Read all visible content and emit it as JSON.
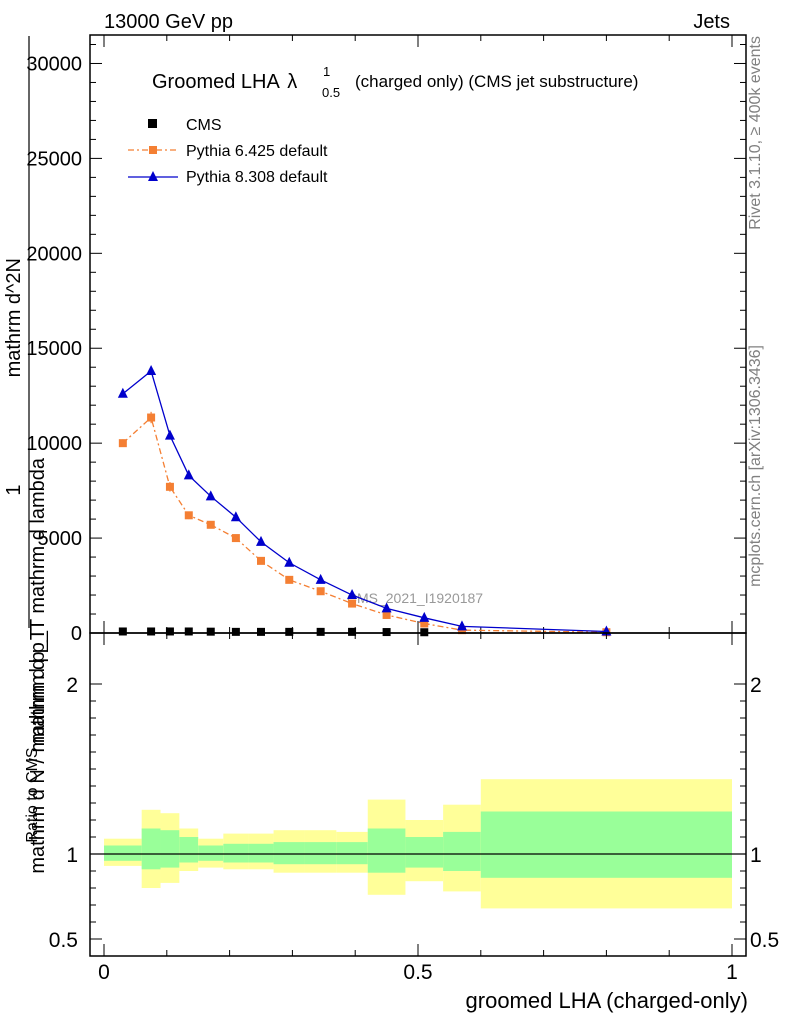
{
  "header": {
    "left": "13000 GeV pp",
    "right": "Jets"
  },
  "side_text": {
    "rivet": "Rivet 3.1.10, ≥ 400k events",
    "mcplots": "mcplots.cern.ch [arXiv:1306.3436]"
  },
  "chart_data": [
    {
      "type": "line",
      "title": "Groomed LHA",
      "title_lambda": "λ",
      "title_sup": "1",
      "title_sub": "0.5",
      "title_suffix": "(charged only) (CMS jet substructure)",
      "ylabel_parts": [
        "1",
        "mathrm d N / mathrm d p_T",
        "mathrm d^2N",
        "mathrm d p_T mathrm d lambda"
      ],
      "watermark": "CMS_2021_I1920187",
      "xlim": [
        0,
        1
      ],
      "ylim": [
        0,
        31500
      ],
      "yticks": [
        0,
        5000,
        10000,
        15000,
        20000,
        25000,
        30000
      ],
      "ytick_labels": [
        "0",
        "5000",
        "10000",
        "15000",
        "20000",
        "25000",
        "30000"
      ],
      "colors": {
        "cms": "#000000",
        "p6": "#f47f33",
        "p8": "#0000cc"
      },
      "series": [
        {
          "name": "CMS",
          "x": [
            0.03,
            0.075,
            0.105,
            0.135,
            0.17,
            0.21,
            0.25,
            0.295,
            0.345,
            0.395,
            0.45,
            0.51
          ],
          "values": [
            80,
            80,
            80,
            80,
            70,
            60,
            60,
            60,
            60,
            60,
            50,
            40
          ]
        },
        {
          "name": "Pythia 6.425 default",
          "x": [
            0.03,
            0.075,
            0.105,
            0.135,
            0.17,
            0.21,
            0.25,
            0.295,
            0.345,
            0.395,
            0.45,
            0.51,
            0.57,
            0.8
          ],
          "values": [
            10000,
            11350,
            7700,
            6200,
            5700,
            5000,
            3800,
            2800,
            2200,
            1550,
            950,
            500,
            150,
            40
          ],
          "errors": [
            200,
            300,
            250,
            200,
            150,
            150,
            120,
            100,
            100,
            80,
            60,
            50,
            30,
            20
          ]
        },
        {
          "name": "Pythia 8.308 default",
          "x": [
            0.03,
            0.075,
            0.105,
            0.135,
            0.17,
            0.21,
            0.25,
            0.295,
            0.345,
            0.395,
            0.45,
            0.51,
            0.57,
            0.8
          ],
          "values": [
            12600,
            13800,
            10400,
            8300,
            7200,
            6100,
            4800,
            3700,
            2800,
            2000,
            1300,
            800,
            350,
            80
          ]
        }
      ]
    },
    {
      "type": "area",
      "ylabel": "Ratio to CMS",
      "xlabel": "groomed LHA (charged-only)",
      "xlim": [
        0,
        1
      ],
      "ylim": [
        0.4,
        2.3
      ],
      "ytick_labels": [
        "0.5",
        "1",
        "2"
      ],
      "yticks": [
        0.5,
        1,
        2
      ],
      "xticks": [
        0,
        0.5,
        1
      ],
      "xtick_labels": [
        "0",
        "0.5",
        "1"
      ],
      "band_colors": {
        "outer": "#ffff99",
        "inner": "#99ff99"
      },
      "bins": [
        {
          "x0": 0.0,
          "x1": 0.06,
          "outer": [
            0.93,
            1.09
          ],
          "inner": [
            0.96,
            1.05
          ]
        },
        {
          "x0": 0.06,
          "x1": 0.09,
          "outer": [
            0.8,
            1.26
          ],
          "inner": [
            0.91,
            1.15
          ]
        },
        {
          "x0": 0.09,
          "x1": 0.12,
          "outer": [
            0.83,
            1.24
          ],
          "inner": [
            0.92,
            1.14
          ]
        },
        {
          "x0": 0.12,
          "x1": 0.15,
          "outer": [
            0.9,
            1.15
          ],
          "inner": [
            0.95,
            1.1
          ]
        },
        {
          "x0": 0.15,
          "x1": 0.19,
          "outer": [
            0.92,
            1.09
          ],
          "inner": [
            0.96,
            1.05
          ]
        },
        {
          "x0": 0.19,
          "x1": 0.23,
          "outer": [
            0.91,
            1.12
          ],
          "inner": [
            0.95,
            1.06
          ]
        },
        {
          "x0": 0.23,
          "x1": 0.27,
          "outer": [
            0.91,
            1.12
          ],
          "inner": [
            0.95,
            1.06
          ]
        },
        {
          "x0": 0.27,
          "x1": 0.32,
          "outer": [
            0.89,
            1.14
          ],
          "inner": [
            0.94,
            1.07
          ]
        },
        {
          "x0": 0.32,
          "x1": 0.37,
          "outer": [
            0.89,
            1.14
          ],
          "inner": [
            0.94,
            1.07
          ]
        },
        {
          "x0": 0.37,
          "x1": 0.42,
          "outer": [
            0.89,
            1.13
          ],
          "inner": [
            0.94,
            1.07
          ]
        },
        {
          "x0": 0.42,
          "x1": 0.48,
          "outer": [
            0.76,
            1.32
          ],
          "inner": [
            0.89,
            1.15
          ]
        },
        {
          "x0": 0.48,
          "x1": 0.54,
          "outer": [
            0.84,
            1.2
          ],
          "inner": [
            0.92,
            1.1
          ]
        },
        {
          "x0": 0.54,
          "x1": 0.6,
          "outer": [
            0.78,
            1.29
          ],
          "inner": [
            0.9,
            1.13
          ]
        },
        {
          "x0": 0.6,
          "x1": 1.0,
          "outer": [
            0.68,
            1.44
          ],
          "inner": [
            0.86,
            1.25
          ]
        }
      ]
    }
  ]
}
